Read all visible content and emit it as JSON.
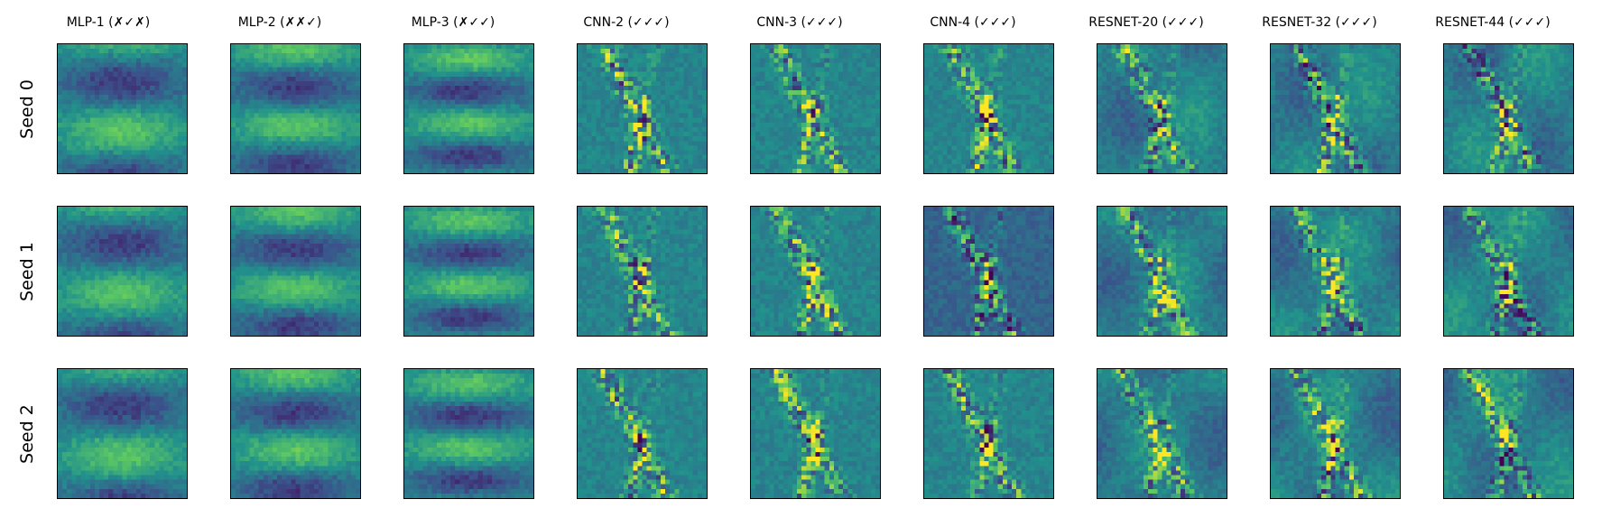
{
  "figure": {
    "columns": [
      "MLP-1 (✗✓✗)",
      "MLP-2 (✗✗✓)",
      "MLP-3 (✗✓✓)",
      "CNN-2 (✓✓✓)",
      "CNN-3 (✓✓✓)",
      "CNN-4 (✓✓✓)",
      "RESNET-20 (✓✓✓)",
      "RESNET-32 (✓✓✓)",
      "RESNET-44 (✓✓✓)"
    ],
    "rows": [
      "Seed 0",
      "Seed 1",
      "Seed 2"
    ],
    "colormap": [
      "#440154",
      "#3b528b",
      "#21918c",
      "#5ec962",
      "#fde725"
    ]
  }
}
